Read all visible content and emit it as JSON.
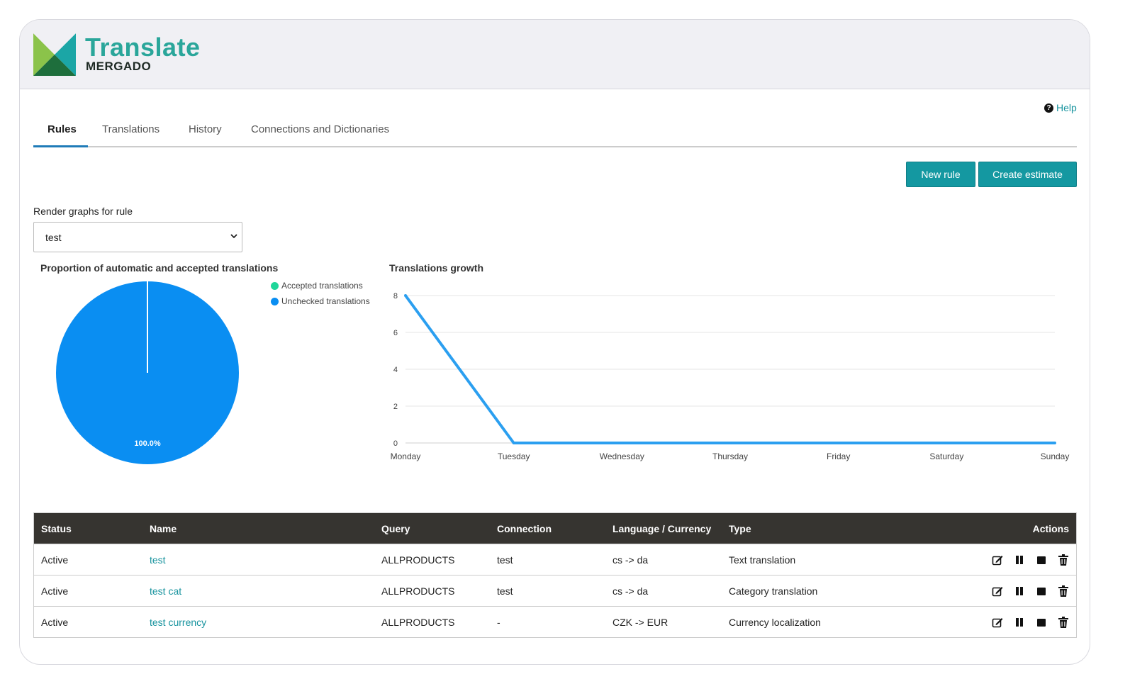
{
  "brand": {
    "title": "Translate",
    "subtitle": "MERGADO",
    "colors": {
      "primary": "#2aa69a",
      "dark": "#1e6e3c",
      "light": "#8bc34a"
    }
  },
  "help": {
    "icon": "question-circle-icon",
    "label": "Help"
  },
  "tabs": [
    {
      "label": "Rules",
      "active": true
    },
    {
      "label": "Translations",
      "active": false
    },
    {
      "label": "History",
      "active": false
    },
    {
      "label": "Connections and Dictionaries",
      "active": false
    }
  ],
  "actions": {
    "new_rule": "New rule",
    "create_estimate": "Create estimate",
    "color": "#1498a1"
  },
  "graph_select": {
    "label": "Render graphs for rule",
    "value": "test"
  },
  "chart_data": [
    {
      "type": "pie",
      "title": "Proportion of automatic and accepted translations",
      "categories": [
        "Accepted translations",
        "Unchecked translations"
      ],
      "values": [
        0,
        100
      ],
      "colors": [
        "#1fd69a",
        "#0a8ef2"
      ],
      "data_labels": [
        "100.0%"
      ],
      "legend": "top-right"
    },
    {
      "type": "line",
      "title": "Translations growth",
      "categories": [
        "Monday",
        "Tuesday",
        "Wednesday",
        "Thursday",
        "Friday",
        "Saturday",
        "Sunday"
      ],
      "series": [
        {
          "values": [
            8,
            0,
            0,
            0,
            0,
            0,
            0
          ],
          "color": "#2b9ff0"
        }
      ],
      "yticks": [
        "0",
        "2",
        "4",
        "6",
        "8"
      ],
      "ylim": [
        0,
        8
      ],
      "grid": true
    }
  ],
  "table": {
    "headers": [
      "Status",
      "Name",
      "Query",
      "Connection",
      "Language / Currency",
      "Type",
      "Actions"
    ],
    "rows": [
      {
        "status": "Active",
        "name": "test",
        "query": "ALLPRODUCTS",
        "connection": "test",
        "lang": "cs -> da",
        "type": "Text translation"
      },
      {
        "status": "Active",
        "name": "test cat",
        "query": "ALLPRODUCTS",
        "connection": "test",
        "lang": "cs -> da",
        "type": "Category translation"
      },
      {
        "status": "Active",
        "name": "test currency",
        "query": "ALLPRODUCTS",
        "connection": "-",
        "lang": "CZK -> EUR",
        "type": "Currency localization"
      }
    ],
    "row_actions": [
      "edit-icon",
      "pause-icon",
      "stop-icon",
      "trash-icon"
    ]
  }
}
